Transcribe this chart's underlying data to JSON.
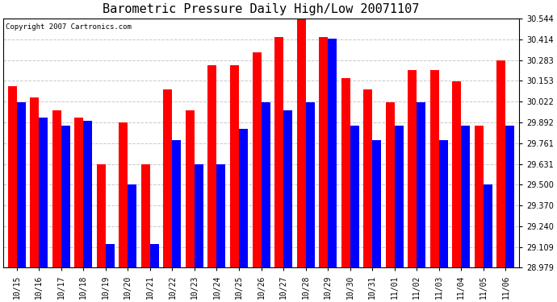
{
  "title": "Barometric Pressure Daily High/Low 20071107",
  "copyright": "Copyright 2007 Cartronics.com",
  "categories": [
    "10/15",
    "10/16",
    "10/17",
    "10/18",
    "10/19",
    "10/20",
    "10/21",
    "10/22",
    "10/23",
    "10/24",
    "10/25",
    "10/26",
    "10/27",
    "10/28",
    "10/29",
    "10/30",
    "10/31",
    "11/01",
    "11/02",
    "11/03",
    "11/04",
    "11/05",
    "11/06"
  ],
  "highs": [
    30.12,
    30.05,
    29.97,
    29.92,
    29.63,
    29.89,
    29.63,
    30.1,
    29.97,
    30.25,
    30.25,
    30.33,
    30.43,
    30.54,
    30.43,
    30.17,
    30.1,
    30.02,
    30.22,
    30.22,
    30.15,
    29.87,
    30.28
  ],
  "lows": [
    30.02,
    29.92,
    29.87,
    29.9,
    29.13,
    29.5,
    29.13,
    29.78,
    29.63,
    29.63,
    29.85,
    30.02,
    29.97,
    30.02,
    30.42,
    29.87,
    29.78,
    29.87,
    30.02,
    29.78,
    29.87,
    29.5,
    29.87
  ],
  "high_color": "#FF0000",
  "low_color": "#0000FF",
  "bg_color": "#FFFFFF",
  "plot_bg_color": "#FFFFFF",
  "grid_color": "#C8C8C8",
  "ymin": 28.979,
  "ymax": 30.544,
  "yticks": [
    30.544,
    30.414,
    30.283,
    30.153,
    30.022,
    29.892,
    29.761,
    29.631,
    29.5,
    29.37,
    29.24,
    29.109,
    28.979
  ],
  "title_fontsize": 11,
  "copyright_fontsize": 6.5,
  "tick_fontsize": 7,
  "bar_width": 0.4
}
